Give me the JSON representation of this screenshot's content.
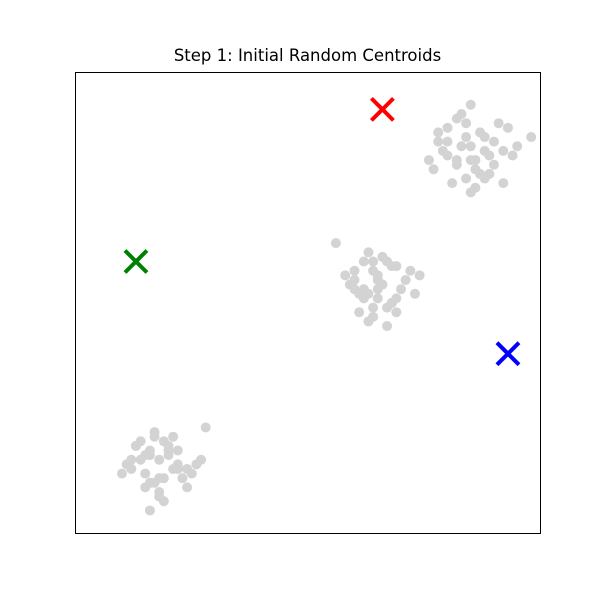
{
  "chart_data": {
    "type": "scatter",
    "title": "Step 1: Initial Random Centroids",
    "xlabel": "",
    "ylabel": "",
    "xlim": [
      0,
      10
    ],
    "ylim": [
      0,
      10
    ],
    "axis_ticks": false,
    "grid": false,
    "series": [
      {
        "role": "data-points",
        "color": "#d3d3d3",
        "marker": "circle",
        "x": [
          8.5,
          8.2,
          8.8,
          9.2,
          8.0,
          8.6,
          7.8,
          9.4,
          8.4,
          8.9,
          8.1,
          8.7,
          9.0,
          8.3,
          7.9,
          8.5,
          9.3,
          8.6,
          8.0,
          8.8,
          7.7,
          8.4,
          9.5,
          8.2,
          8.9,
          8.6,
          7.6,
          9.1,
          8.3,
          8.7,
          8.5,
          9.8,
          8.0,
          8.4,
          9.0,
          8.2,
          7.8,
          8.8,
          9.2,
          8.5,
          6.5,
          6.2,
          6.8,
          6.9,
          6.0,
          6.6,
          5.9,
          6.4,
          7.2,
          6.3,
          6.7,
          6.1,
          6.5,
          7.0,
          6.3,
          6.8,
          5.8,
          6.6,
          6.4,
          6.9,
          6.2,
          7.3,
          6.0,
          6.7,
          6.5,
          5.6,
          7.1,
          6.3,
          6.8,
          6.4,
          6.6,
          6.1,
          6.9,
          7.4,
          6.2,
          6.5,
          6.7,
          6.0,
          6.4,
          6.8,
          1.8,
          1.5,
          2.0,
          2.2,
          1.3,
          1.9,
          1.6,
          2.4,
          1.7,
          2.1,
          1.4,
          1.8,
          2.6,
          1.2,
          1.9,
          1.6,
          2.3,
          1.5,
          2.0,
          1.7,
          1.1,
          2.5,
          1.8,
          1.4,
          2.2,
          1.6,
          2.7,
          1.9,
          1.3,
          2.1,
          1.7,
          2.4,
          1.5,
          1.0,
          2.0,
          1.8,
          2.8,
          1.6,
          1.2,
          2.2
        ],
        "y": [
          8.4,
          8.1,
          8.6,
          8.3,
          8.8,
          7.9,
          8.5,
          8.2,
          8.9,
          7.8,
          7.6,
          8.7,
          8.0,
          9.1,
          8.3,
          7.4,
          8.8,
          8.1,
          8.5,
          7.7,
          7.9,
          8.6,
          8.4,
          9.0,
          8.2,
          7.5,
          8.1,
          8.9,
          8.4,
          7.8,
          9.3,
          8.6,
          8.2,
          7.7,
          8.5,
          8.0,
          8.7,
          8.3,
          7.6,
          8.1,
          5.6,
          5.3,
          5.8,
          5.1,
          5.5,
          6.0,
          5.4,
          4.9,
          5.7,
          5.2,
          5.9,
          4.8,
          5.5,
          5.3,
          6.1,
          5.0,
          5.6,
          5.4,
          4.7,
          5.8,
          5.1,
          5.2,
          5.7,
          4.9,
          5.3,
          6.3,
          5.5,
          4.6,
          5.0,
          5.9,
          5.4,
          5.2,
          4.8,
          5.6,
          5.9,
          5.1,
          4.5,
          5.3,
          5.7,
          5.0,
          1.6,
          1.3,
          1.8,
          1.5,
          1.9,
          1.2,
          1.7,
          1.4,
          1.1,
          2.1,
          1.6,
          0.9,
          1.5,
          1.4,
          2.0,
          1.8,
          1.2,
          1.0,
          1.7,
          2.2,
          1.5,
          1.3,
          0.8,
          2.0,
          1.8,
          1.1,
          1.6,
          0.7,
          1.9,
          1.4,
          2.1,
          1.0,
          1.7,
          1.3,
          1.9,
          1.2,
          2.3,
          0.5,
          1.6,
          1.4
        ]
      },
      {
        "role": "centroids",
        "marker": "x",
        "points": [
          {
            "x": 6.6,
            "y": 9.2,
            "color": "#ff0000"
          },
          {
            "x": 1.3,
            "y": 5.9,
            "color": "#008000"
          },
          {
            "x": 9.3,
            "y": 3.9,
            "color": "#0000ff"
          }
        ]
      }
    ]
  }
}
